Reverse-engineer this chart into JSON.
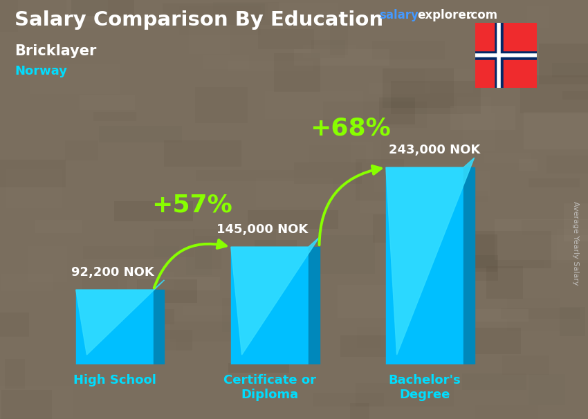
{
  "title": "Salary Comparison By Education",
  "subtitle_job": "Bricklayer",
  "subtitle_country": "Norway",
  "categories": [
    "High School",
    "Certificate or\nDiploma",
    "Bachelor's\nDegree"
  ],
  "values": [
    92200,
    145000,
    243000
  ],
  "value_labels": [
    "92,200 NOK",
    "145,000 NOK",
    "243,000 NOK"
  ],
  "bar_color": "#00BFFF",
  "bar_color_dark": "#0088BB",
  "bar_color_top": "#33DDFF",
  "pct_labels": [
    "+57%",
    "+68%"
  ],
  "pct_color": "#88FF00",
  "arrow_color": "#88FF00",
  "bg_color": "#7A6E5E",
  "title_color": "#FFFFFF",
  "subtitle_job_color": "#FFFFFF",
  "subtitle_country_color": "#00DDFF",
  "label_color": "#FFFFFF",
  "tick_color": "#00DDFF",
  "watermark_salary": "salary",
  "watermark_explorer": "explorer",
  "watermark_dot_com": ".com",
  "side_label": "Average Yearly Salary",
  "ylim": [
    0,
    310000
  ],
  "xlim": [
    -0.55,
    2.75
  ],
  "bar_width": 0.5,
  "depth_x": 0.07,
  "depth_y": 12000
}
